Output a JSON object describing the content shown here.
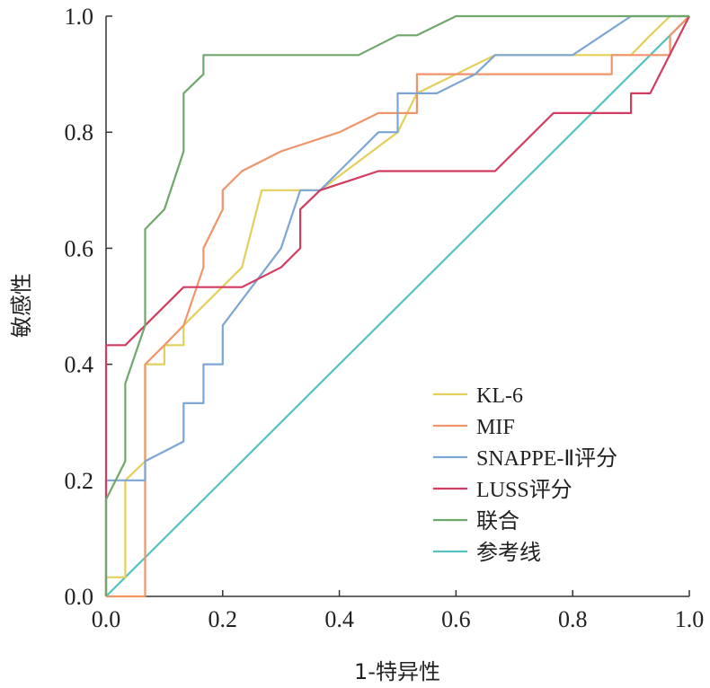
{
  "chart_data": {
    "type": "line",
    "title": "",
    "xlabel": "1-特异性",
    "ylabel": "敏感性",
    "xlim": [
      0,
      1
    ],
    "ylim": [
      0,
      1
    ],
    "x_ticks": [
      "0.0",
      "0.2",
      "0.4",
      "0.6",
      "0.8",
      "1.0"
    ],
    "y_ticks": [
      "0.0",
      "0.2",
      "0.4",
      "0.6",
      "0.8",
      "1.0"
    ],
    "grid": false,
    "legend_position": "bottom-right",
    "series": [
      {
        "name": "KL-6",
        "color": "#e3cf5a",
        "points": [
          [
            0,
            0
          ],
          [
            0,
            0.033
          ],
          [
            0.033,
            0.033
          ],
          [
            0.033,
            0.2
          ],
          [
            0.067,
            0.233
          ],
          [
            0.067,
            0.4
          ],
          [
            0.1,
            0.4
          ],
          [
            0.1,
            0.433
          ],
          [
            0.133,
            0.433
          ],
          [
            0.133,
            0.467
          ],
          [
            0.233,
            0.567
          ],
          [
            0.267,
            0.7
          ],
          [
            0.367,
            0.7
          ],
          [
            0.5,
            0.8
          ],
          [
            0.533,
            0.867
          ],
          [
            0.6,
            0.9
          ],
          [
            0.667,
            0.933
          ],
          [
            0.9,
            0.933
          ],
          [
            0.933,
            0.967
          ],
          [
            0.967,
            1.0
          ],
          [
            1,
            1
          ]
        ]
      },
      {
        "name": "MIF",
        "color": "#f0946a",
        "points": [
          [
            0,
            0
          ],
          [
            0.067,
            0
          ],
          [
            0.067,
            0.4
          ],
          [
            0.1,
            0.433
          ],
          [
            0.133,
            0.467
          ],
          [
            0.167,
            0.567
          ],
          [
            0.167,
            0.6
          ],
          [
            0.2,
            0.667
          ],
          [
            0.2,
            0.7
          ],
          [
            0.233,
            0.733
          ],
          [
            0.3,
            0.767
          ],
          [
            0.4,
            0.8
          ],
          [
            0.467,
            0.833
          ],
          [
            0.533,
            0.833
          ],
          [
            0.533,
            0.9
          ],
          [
            0.867,
            0.9
          ],
          [
            0.867,
            0.933
          ],
          [
            0.967,
            0.933
          ],
          [
            0.967,
            0.967
          ],
          [
            1,
            1
          ]
        ]
      },
      {
        "name": "SNAPPE-Ⅱ评分",
        "color": "#7ba6d6",
        "points": [
          [
            0,
            0
          ],
          [
            0,
            0.2
          ],
          [
            0.067,
            0.2
          ],
          [
            0.067,
            0.233
          ],
          [
            0.133,
            0.267
          ],
          [
            0.133,
            0.333
          ],
          [
            0.167,
            0.333
          ],
          [
            0.167,
            0.4
          ],
          [
            0.2,
            0.4
          ],
          [
            0.2,
            0.467
          ],
          [
            0.3,
            0.6
          ],
          [
            0.333,
            0.7
          ],
          [
            0.367,
            0.7
          ],
          [
            0.467,
            0.8
          ],
          [
            0.5,
            0.8
          ],
          [
            0.5,
            0.867
          ],
          [
            0.567,
            0.867
          ],
          [
            0.633,
            0.9
          ],
          [
            0.667,
            0.933
          ],
          [
            0.8,
            0.933
          ],
          [
            0.9,
            1.0
          ],
          [
            1,
            1
          ]
        ]
      },
      {
        "name": "LUSS评分",
        "color": "#d13c60",
        "points": [
          [
            0,
            0
          ],
          [
            0,
            0.433
          ],
          [
            0.033,
            0.433
          ],
          [
            0.133,
            0.533
          ],
          [
            0.233,
            0.533
          ],
          [
            0.3,
            0.567
          ],
          [
            0.333,
            0.6
          ],
          [
            0.333,
            0.667
          ],
          [
            0.367,
            0.7
          ],
          [
            0.467,
            0.733
          ],
          [
            0.667,
            0.733
          ],
          [
            0.767,
            0.833
          ],
          [
            0.9,
            0.833
          ],
          [
            0.9,
            0.867
          ],
          [
            0.933,
            0.867
          ],
          [
            1,
            1
          ]
        ]
      },
      {
        "name": "联合",
        "color": "#6fa86a",
        "points": [
          [
            0,
            0
          ],
          [
            0,
            0.167
          ],
          [
            0.033,
            0.233
          ],
          [
            0.033,
            0.367
          ],
          [
            0.067,
            0.467
          ],
          [
            0.067,
            0.633
          ],
          [
            0.1,
            0.667
          ],
          [
            0.133,
            0.767
          ],
          [
            0.133,
            0.867
          ],
          [
            0.167,
            0.9
          ],
          [
            0.167,
            0.933
          ],
          [
            0.433,
            0.933
          ],
          [
            0.5,
            0.967
          ],
          [
            0.533,
            0.967
          ],
          [
            0.6,
            1.0
          ],
          [
            1,
            1
          ]
        ]
      },
      {
        "name": "参考线",
        "color": "#55c2c2",
        "points": [
          [
            0,
            0
          ],
          [
            1,
            1
          ]
        ]
      }
    ]
  }
}
